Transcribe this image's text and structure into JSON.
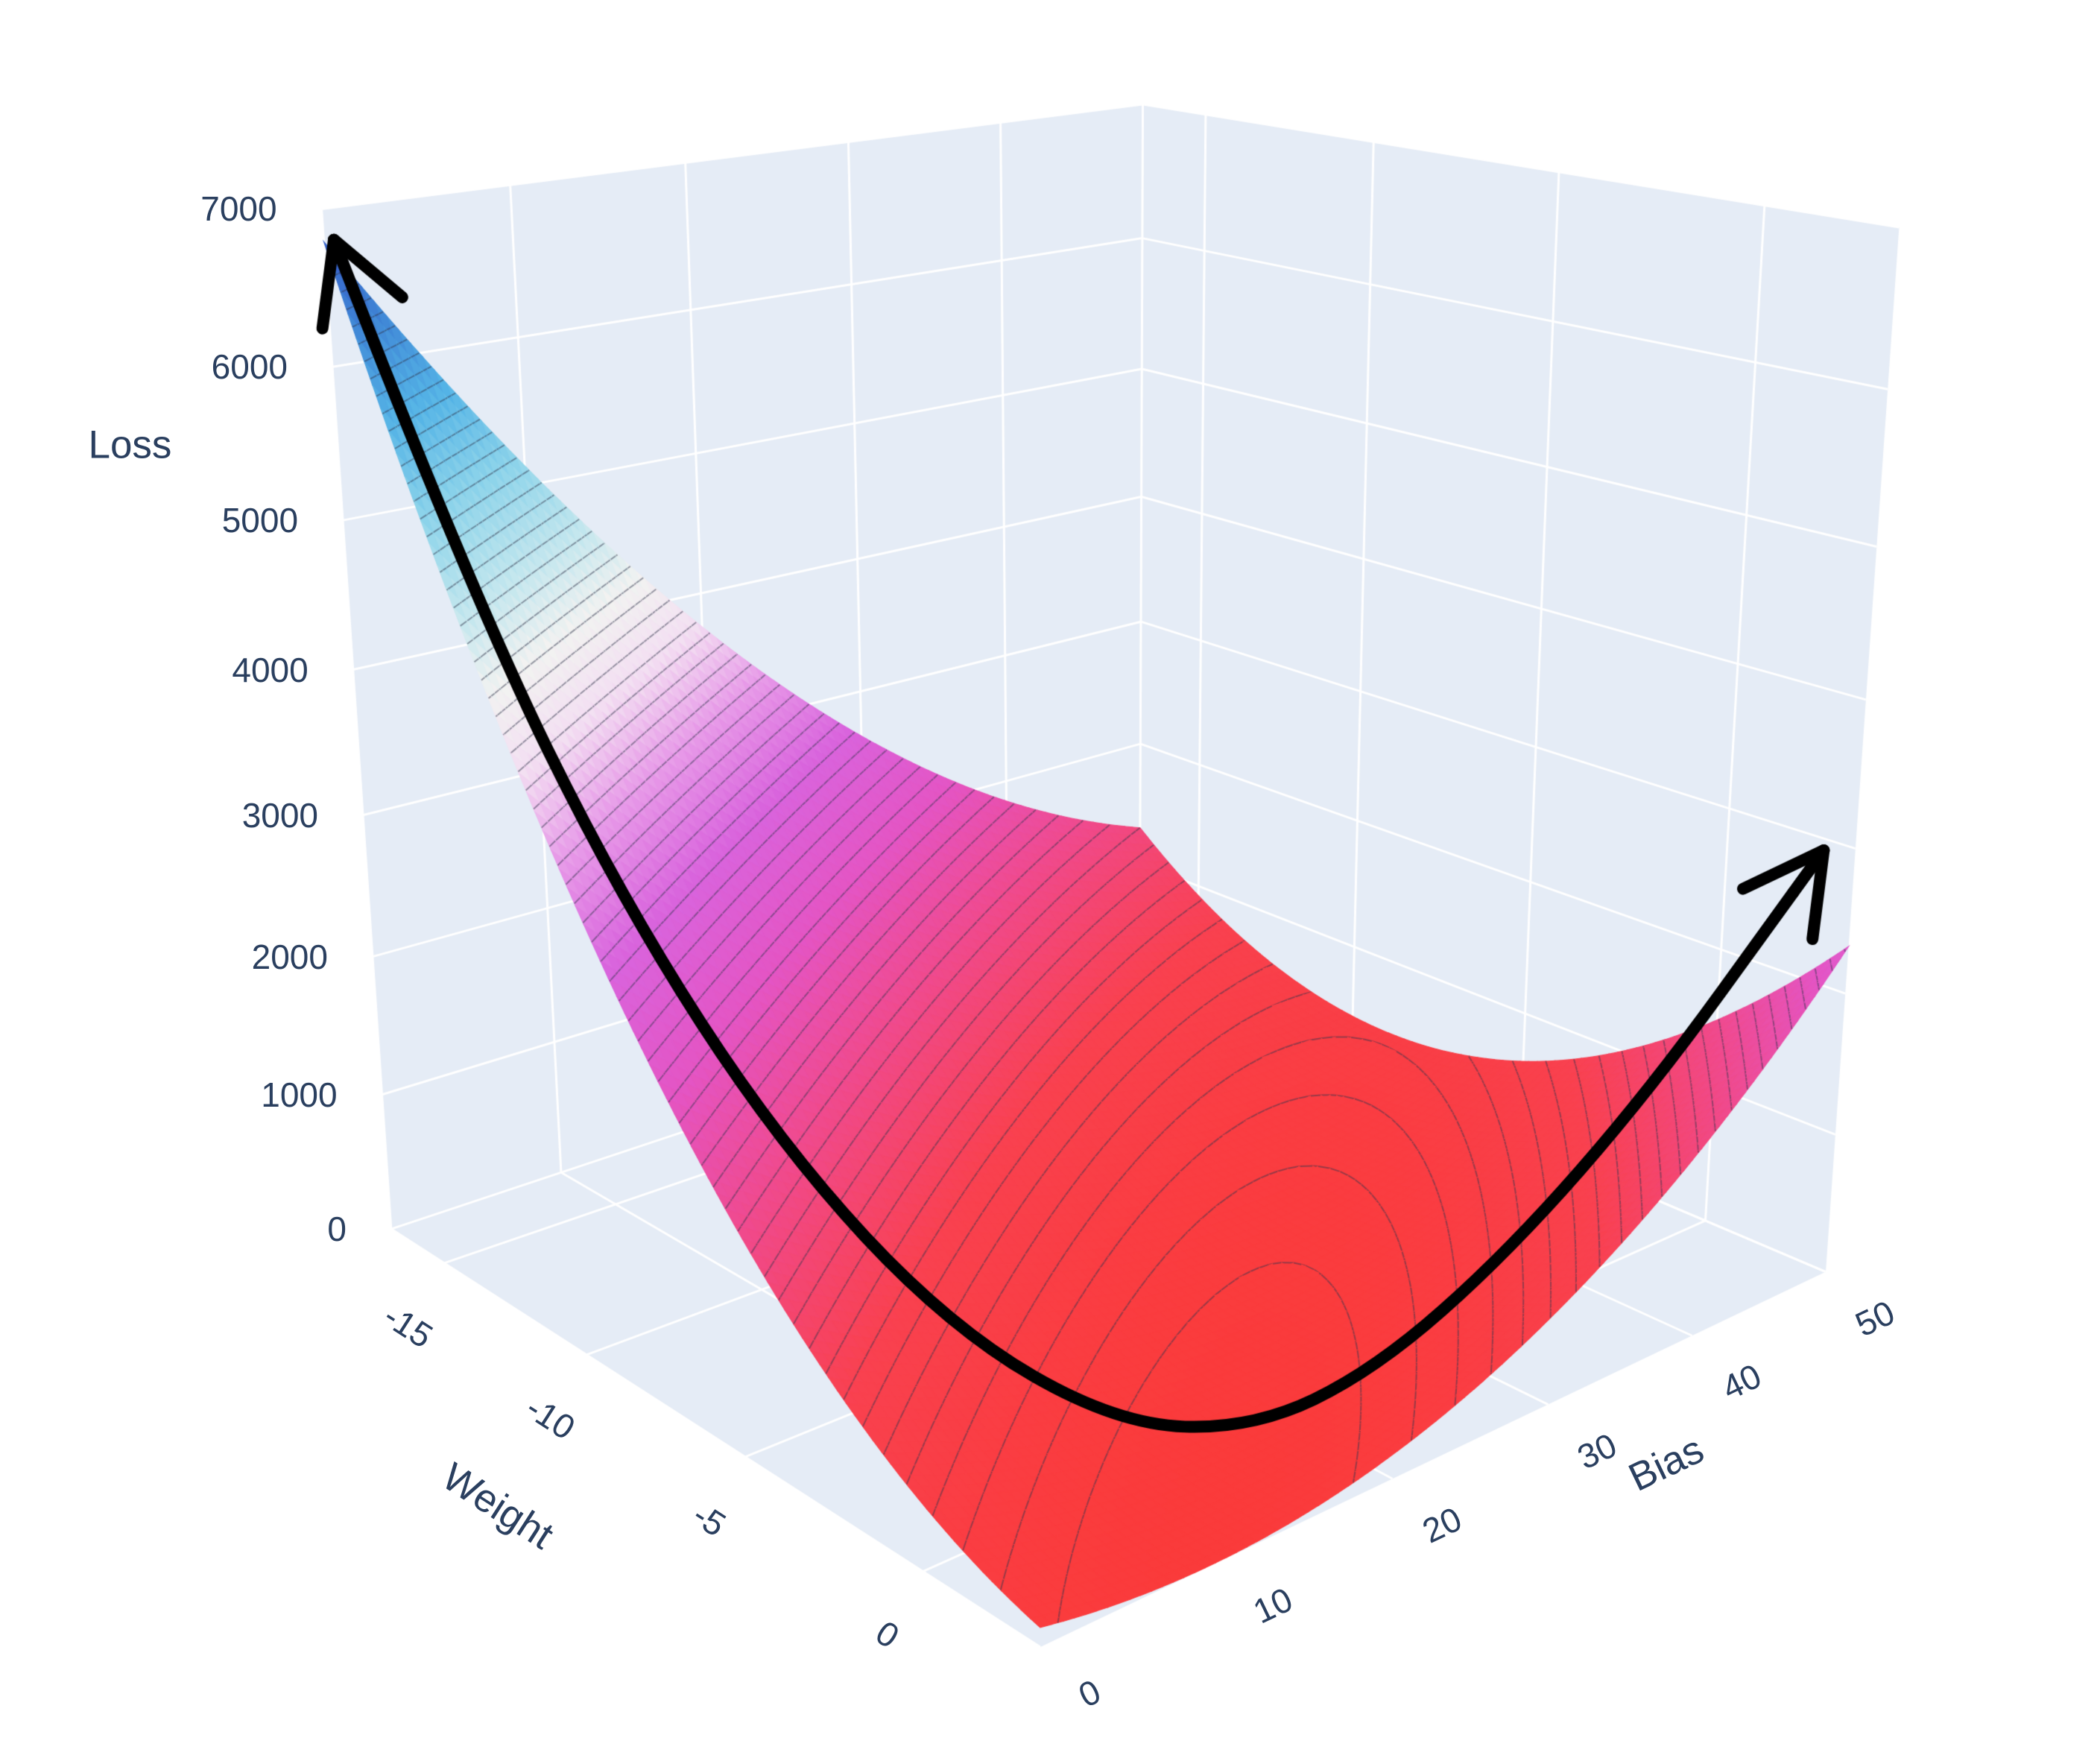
{
  "chart_data": {
    "type": "surface",
    "title": "",
    "xlabel": "Weight",
    "ylabel": "Bias",
    "zlabel": "Loss",
    "x_range": [
      -17,
      3
    ],
    "y_range": [
      0,
      50
    ],
    "z_range": [
      0,
      7000
    ],
    "x_ticks": [
      -15,
      -10,
      -5,
      0
    ],
    "y_ticks": [
      0,
      10,
      20,
      30,
      40,
      50
    ],
    "z_ticks": [
      0,
      1000,
      2000,
      3000,
      4000,
      5000,
      6000,
      7000
    ],
    "surface_model": {
      "formula": "loss = a*(w-w0)^2 + b2*(b-b0)^2 + c*(w-w0)*(b-b0)",
      "a": 13.4,
      "b2": 1.4,
      "c": 7.7,
      "w0": 2,
      "b0": 12
    },
    "sample_grid": {
      "weight": [
        -17,
        -12,
        -7,
        -2,
        3
      ],
      "bias": [
        0,
        10,
        20,
        30,
        40,
        50
      ],
      "loss": [
        [
          6795,
          5136,
          3757,
          2658,
          1839,
          1300
        ],
        [
          4122,
          2848,
          1854,
          1140,
          706,
          552
        ],
        [
          2119,
          1230,
          621,
          292,
          243,
          474
        ],
        [
          786,
          282,
          58,
          114,
          450,
          1066
        ],
        [
          123,
          4,
          165,
          606,
          1327,
          2328
        ]
      ]
    },
    "contour_step": 100,
    "contour_color": "rgba(50,54,78,0.48)",
    "colorscale": [
      [
        0.0,
        "#fa3b3b"
      ],
      [
        0.11,
        "#f9414f"
      ],
      [
        0.21,
        "#f04a8c"
      ],
      [
        0.3,
        "#e455c4"
      ],
      [
        0.39,
        "#d964dd"
      ],
      [
        0.47,
        "#e79ae8"
      ],
      [
        0.54,
        "#f3dff2"
      ],
      [
        0.6,
        "#f2f2f1"
      ],
      [
        0.66,
        "#c5e7ee"
      ],
      [
        0.74,
        "#8ed4ea"
      ],
      [
        0.82,
        "#55b4e6"
      ],
      [
        0.9,
        "#3f85d6"
      ],
      [
        1.0,
        "#3148c0"
      ]
    ],
    "scene_bg": "#e5ecf6",
    "grid_color": "#ffffff",
    "page_bg": "#ffffff",
    "label_color": "#2a3f5f",
    "annotation_arrow": {
      "color": "#000000",
      "path": [
        [
          -16.2,
          0.2,
          250
        ],
        [
          -13,
          0.8,
          260
        ],
        [
          -9.5,
          2.2,
          290
        ],
        [
          -6,
          4.2,
          330
        ],
        [
          -2.5,
          6.6,
          390
        ],
        [
          0.5,
          9.6,
          460
        ],
        [
          2.2,
          13.5,
          540
        ],
        [
          2.9,
          19,
          630
        ],
        [
          3,
          27,
          740
        ],
        [
          3,
          36,
          870
        ],
        [
          3,
          45.5,
          1010
        ]
      ]
    }
  }
}
